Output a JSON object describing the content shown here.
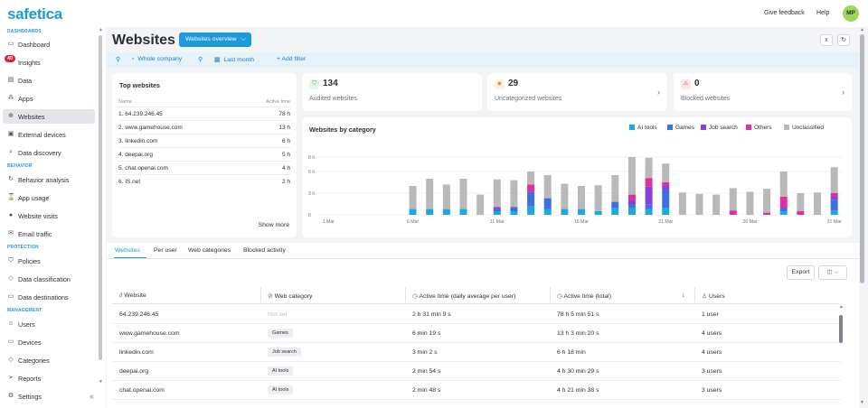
{
  "app": {
    "logo": "safetica",
    "feedback": "Give feedback",
    "help": "Help",
    "avatar_initials": "MP"
  },
  "sidebar": {
    "sections": {
      "dashboards": "DASHBOARDS",
      "behavior": "BEHAVIOR",
      "protection": "PROTECTION",
      "management": "MANAGEMENT"
    },
    "items": [
      {
        "label": "Dashboard",
        "icon": "monitor-icon"
      },
      {
        "label": "Insights",
        "icon": "bulb-icon",
        "badge": "40"
      },
      {
        "label": "Data",
        "icon": "file-icon"
      },
      {
        "label": "Apps",
        "icon": "apps-icon"
      },
      {
        "label": "Websites",
        "icon": "globe-icon"
      },
      {
        "label": "External devices",
        "icon": "devices-icon"
      },
      {
        "label": "Data discovery",
        "icon": "search-icon"
      },
      {
        "label": "Behavior analysis",
        "icon": "refresh-icon"
      },
      {
        "label": "App usage",
        "icon": "hourglass-icon"
      },
      {
        "label": "Website visits",
        "icon": "globe-filled-icon"
      },
      {
        "label": "Email traffic",
        "icon": "mail-icon"
      },
      {
        "label": "Policies",
        "icon": "shield-icon"
      },
      {
        "label": "Data classification",
        "icon": "tag-icon"
      },
      {
        "label": "Data destinations",
        "icon": "destination-icon"
      },
      {
        "label": "Users",
        "icon": "users-icon"
      },
      {
        "label": "Devices",
        "icon": "laptop-icon"
      },
      {
        "label": "Categories",
        "icon": "category-icon"
      },
      {
        "label": "Reports",
        "icon": "send-icon"
      },
      {
        "label": "Settings",
        "icon": "gear-icon"
      }
    ],
    "active": "Websites"
  },
  "header": {
    "title": "Websites",
    "view_button": "Websites overview"
  },
  "filters": {
    "company": "Whole company",
    "period": "Last month",
    "add": "+ Add filter"
  },
  "top_websites": {
    "title": "Top websites",
    "col_name": "Name",
    "col_time": "Active time",
    "rows": [
      {
        "name": "1. 64.239.246.45",
        "time": "78 h"
      },
      {
        "name": "2. www.gamehouse.com",
        "time": "13 h"
      },
      {
        "name": "3. linkedin.com",
        "time": "6 h"
      },
      {
        "name": "4. deepai.org",
        "time": "5 h"
      },
      {
        "name": "5. chat.openai.com",
        "time": "4 h"
      },
      {
        "name": "6. IS.net",
        "time": "2 h"
      }
    ],
    "show_more": "Show more"
  },
  "stats": [
    {
      "value": "134",
      "label": "Audited websites",
      "icon": "shield-check-icon",
      "color": "#2e9e5b",
      "bg": "#e4f5ea"
    },
    {
      "value": "29",
      "label": "Uncategorized websites",
      "icon": "eye-off-icon",
      "color": "#e08a2b",
      "bg": "#fdf0e1"
    },
    {
      "value": "0",
      "label": "Blocked websites",
      "icon": "warning-icon",
      "color": "#e5203f",
      "bg": "#fde6e9"
    }
  ],
  "chart_data": {
    "type": "bar",
    "title": "Websites by category",
    "y_ticks": [
      "8 h",
      "6 h",
      "3 h",
      "0"
    ],
    "ylim": [
      0,
      8.5
    ],
    "x_tick_labels": [
      "1 Mar",
      "6 Mar",
      "11 Mar",
      "16 Mar",
      "21 Mar",
      "26 Mar",
      "31 Mar"
    ],
    "categories": [
      "1 Mar",
      "2 Mar",
      "3 Mar",
      "4 Mar",
      "5 Mar",
      "6 Mar",
      "7 Mar",
      "8 Mar",
      "9 Mar",
      "10 Mar",
      "11 Mar",
      "12 Mar",
      "13 Mar",
      "14 Mar",
      "15 Mar",
      "16 Mar",
      "17 Mar",
      "18 Mar",
      "19 Mar",
      "20 Mar",
      "21 Mar",
      "22 Mar",
      "23 Mar",
      "24 Mar",
      "25 Mar",
      "26 Mar",
      "27 Mar",
      "28 Mar",
      "29 Mar",
      "30 Mar",
      "31 Mar"
    ],
    "series": [
      {
        "name": "AI tools",
        "color": "#1ba8e0",
        "values": [
          0,
          0,
          0,
          0,
          0,
          0.8,
          0.8,
          0.8,
          0.8,
          0,
          0.5,
          0.5,
          1.2,
          0.8,
          0.8,
          0.8,
          0.5,
          1.0,
          1.0,
          0.8,
          1.0,
          0,
          0,
          0,
          0,
          0,
          0,
          0.5,
          0,
          0,
          0.6
        ]
      },
      {
        "name": "Games",
        "color": "#3d6fe0",
        "values": [
          0,
          0,
          0,
          0,
          0,
          0,
          0,
          0,
          0,
          0,
          0.3,
          0.6,
          2.0,
          1.5,
          0,
          0,
          0,
          0.8,
          0.5,
          0.6,
          2.5,
          0,
          0,
          0,
          0,
          0,
          0,
          0.5,
          0,
          0,
          1.5
        ]
      },
      {
        "name": "Job search",
        "color": "#8a3fd6",
        "values": [
          0,
          0,
          0,
          0,
          0,
          0,
          0,
          0,
          0,
          0,
          0.3,
          0,
          0,
          0,
          0,
          0,
          0,
          0,
          0.5,
          2.5,
          0.5,
          0,
          0,
          0,
          0,
          0,
          0,
          0,
          0,
          0,
          0.4
        ]
      },
      {
        "name": "Others",
        "color": "#e32e9d",
        "values": [
          0,
          0,
          0,
          0,
          0,
          0,
          0,
          0,
          0,
          0,
          0,
          0,
          1.0,
          0,
          0,
          0,
          0,
          0,
          0.8,
          1.2,
          0.5,
          0,
          0,
          0,
          0.6,
          0,
          0.3,
          1.5,
          0.5,
          0,
          0.5
        ]
      },
      {
        "name": "Unclassified",
        "color": "#b9b9b9",
        "values": [
          0,
          0,
          0,
          0,
          0,
          3.2,
          4.2,
          3.4,
          4.2,
          2.8,
          3.8,
          3.7,
          1.8,
          3.2,
          3.5,
          3.2,
          3.6,
          3.7,
          5.2,
          2.8,
          2.6,
          3.1,
          2.9,
          2.8,
          3.1,
          3.2,
          3.3,
          3.5,
          2.5,
          3.1,
          3.6
        ]
      }
    ],
    "grid": true,
    "legend": "top-right"
  },
  "tabs": [
    "Websites",
    "Per user",
    "Web categories",
    "Blocked activity"
  ],
  "table": {
    "export": "Export",
    "columns": [
      "Website",
      "Web category",
      "Active time (daily average per user)",
      "Active time (total)",
      "Users"
    ],
    "rows": [
      {
        "website": "64.239.246.45",
        "category": "Not set",
        "daily": "2 h 31 min 9 s",
        "total": "78 h 5 min 51 s",
        "users": "1 user"
      },
      {
        "website": "www.gamehouse.com",
        "category": "Games",
        "daily": "6 min 19 s",
        "total": "13 h 3 min 20 s",
        "users": "4 users"
      },
      {
        "website": "linkedin.com",
        "category": "Job search",
        "daily": "3 min 2 s",
        "total": "6 h 18 min",
        "users": "4 users"
      },
      {
        "website": "deepai.org",
        "category": "AI tools",
        "daily": "2 min 54 s",
        "total": "4 h 30 min 29 s",
        "users": "3 users"
      },
      {
        "website": "chat.openai.com",
        "category": "AI tools",
        "daily": "2 min 48 s",
        "total": "4 h 21 min 38 s",
        "users": "3 users"
      }
    ]
  }
}
